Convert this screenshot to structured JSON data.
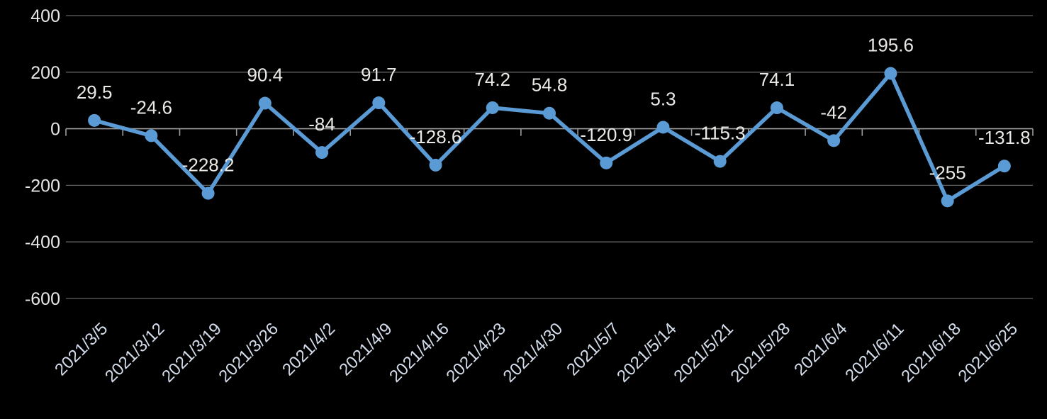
{
  "chart_data": {
    "type": "line",
    "title": "",
    "xlabel": "",
    "ylabel": "",
    "x": [
      "2021/3/5",
      "2021/3/12",
      "2021/3/19",
      "2021/3/26",
      "2021/4/2",
      "2021/4/9",
      "2021/4/16",
      "2021/4/23",
      "2021/4/30",
      "2021/5/7",
      "2021/5/14",
      "2021/5/21",
      "2021/5/28",
      "2021/6/4",
      "2021/6/11",
      "2021/6/18",
      "2021/6/25"
    ],
    "series": [
      {
        "name": "series-1",
        "values": [
          29.5,
          -24.6,
          -228.2,
          90.4,
          -84,
          91.7,
          -128.6,
          74.2,
          54.8,
          -120.9,
          5.3,
          -115.3,
          74.1,
          -42,
          195.6,
          -255,
          -131.8
        ],
        "data_labels": [
          "29.5",
          "-24.6",
          "-228.2",
          "90.4",
          "-84",
          "91.7",
          "-128.6",
          "74.2",
          "54.8",
          "-120.9",
          "5.3",
          "-115.3",
          "74.1",
          "-42",
          "195.6",
          "-255",
          "-131.8"
        ]
      }
    ],
    "y_ticks": [
      400,
      200,
      0,
      -200,
      -400,
      -600
    ],
    "ylim": [
      -600,
      400
    ],
    "grid": true,
    "legend": "none",
    "x_label_rotation_deg": -45,
    "colors": {
      "background": "#000000",
      "line": "#5b9bd5",
      "marker": "#5b9bd5",
      "gridline": "#636363",
      "axis": "#9d9d9d",
      "y_tick_label": "#e6e6e6",
      "x_tick_label": "#d4ddeb",
      "data_label": "#ebe9e5"
    }
  }
}
